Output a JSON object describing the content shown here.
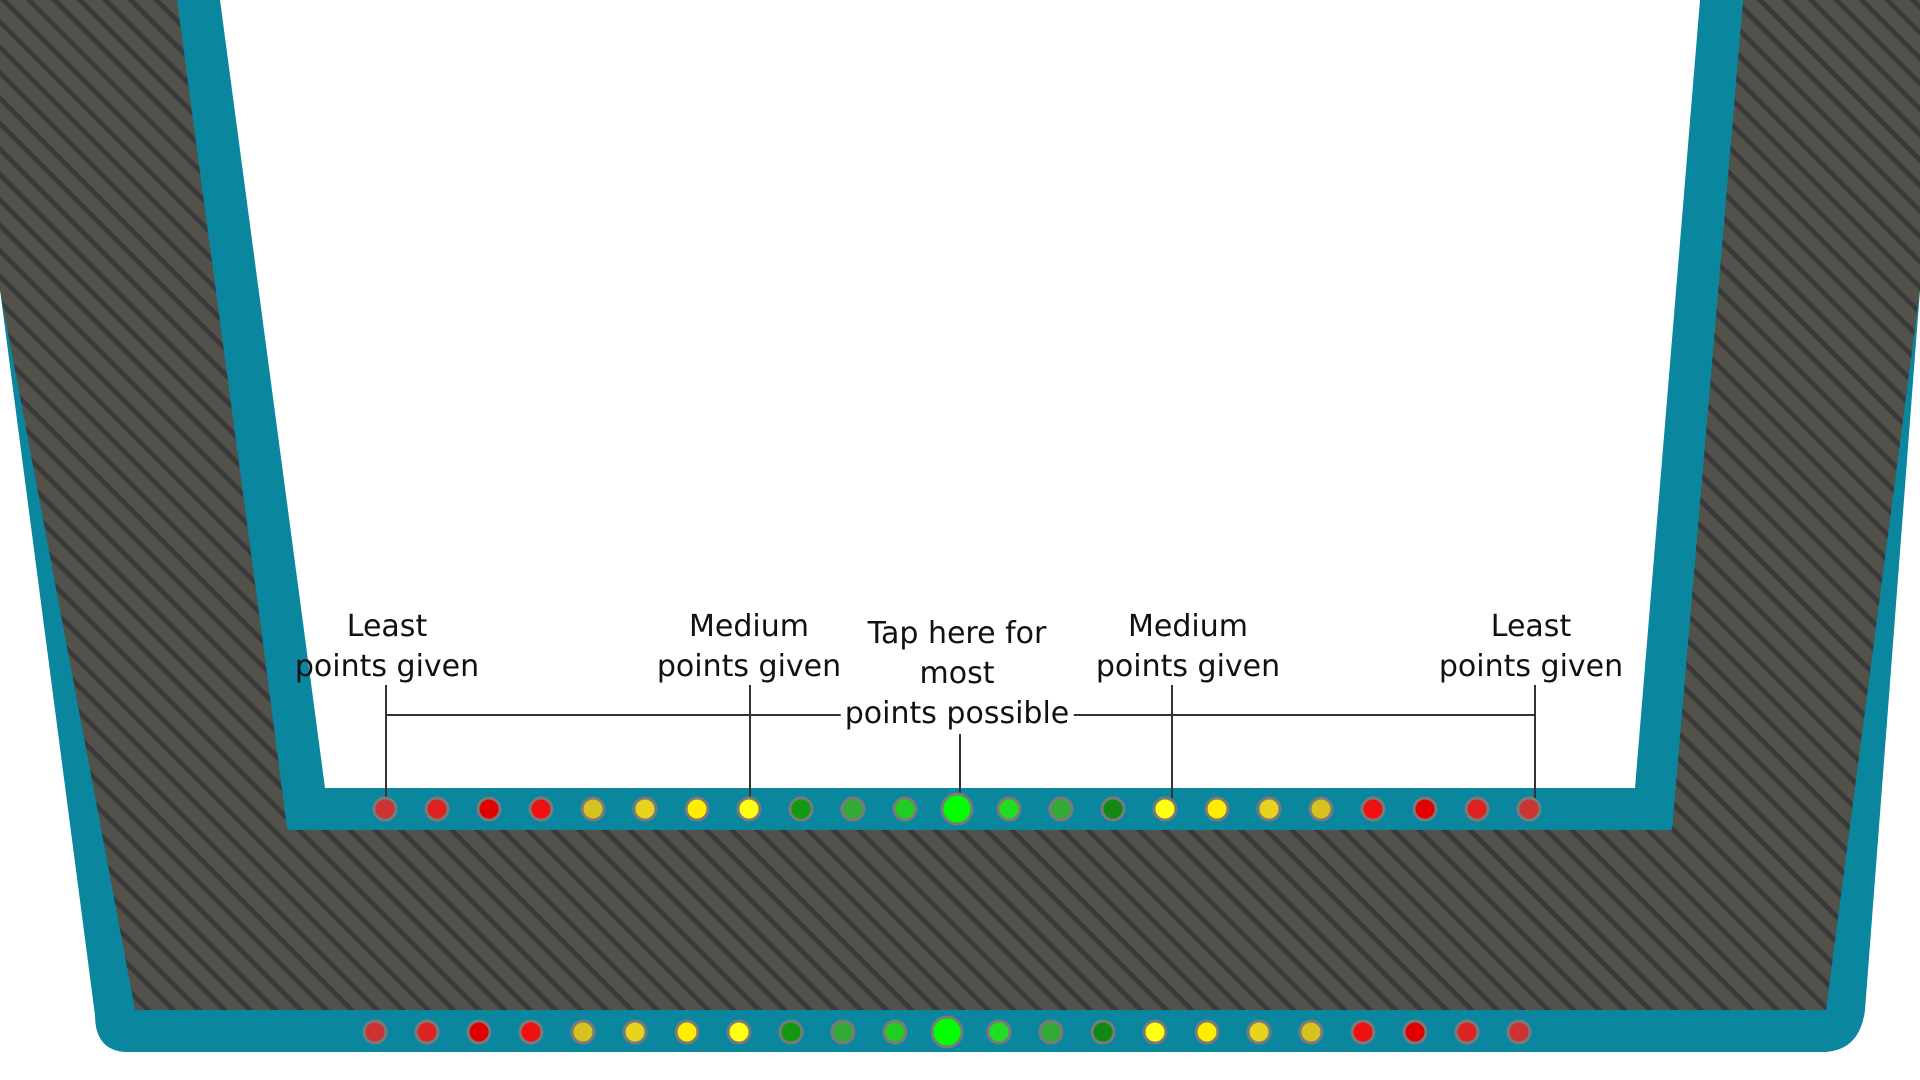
{
  "colors": {
    "teal": "#0A869F",
    "stripe_dark": "#3a3a3a",
    "stripe_light": "#52524a",
    "background": "#ffffff",
    "line": "#333333",
    "dot_border": "#7a7a7a"
  },
  "annotations": [
    {
      "name": "label-least-left",
      "lines": [
        "Least",
        "points given"
      ]
    },
    {
      "name": "label-medium-left",
      "lines": [
        "Medium",
        "points given"
      ]
    },
    {
      "name": "label-most-center",
      "lines": [
        "Tap here for",
        "most",
        "points possible"
      ]
    },
    {
      "name": "label-medium-right",
      "lines": [
        "Medium",
        "points given"
      ]
    },
    {
      "name": "label-least-right",
      "lines": [
        "Least",
        "points given"
      ]
    }
  ],
  "dot_rows": [
    {
      "name": "upper-target-row",
      "colors": [
        "#CC3333",
        "#DD2222",
        "#E00000",
        "#EE1111",
        "#D4C21E",
        "#E8D31C",
        "#FFEE00",
        "#FFFF11",
        "#119911",
        "#33AA33",
        "#22CC22",
        "#00FF00",
        "#22DD22",
        "#33AA33",
        "#118811",
        "#FFFF11",
        "#FFEE00",
        "#E8D31C",
        "#D4C21E",
        "#EE1111",
        "#E00000",
        "#DD2222",
        "#CC3333"
      ]
    },
    {
      "name": "lower-target-row",
      "colors": [
        "#CC3333",
        "#DD2222",
        "#E00000",
        "#EE1111",
        "#D4C21E",
        "#E8D31C",
        "#FFEE00",
        "#FFFF11",
        "#119911",
        "#33AA33",
        "#22CC22",
        "#00FF00",
        "#22DD22",
        "#33AA33",
        "#118811",
        "#FFFF11",
        "#FFEE00",
        "#E8D31C",
        "#D4C21E",
        "#EE1111",
        "#E00000",
        "#DD2222",
        "#CC3333"
      ]
    }
  ]
}
